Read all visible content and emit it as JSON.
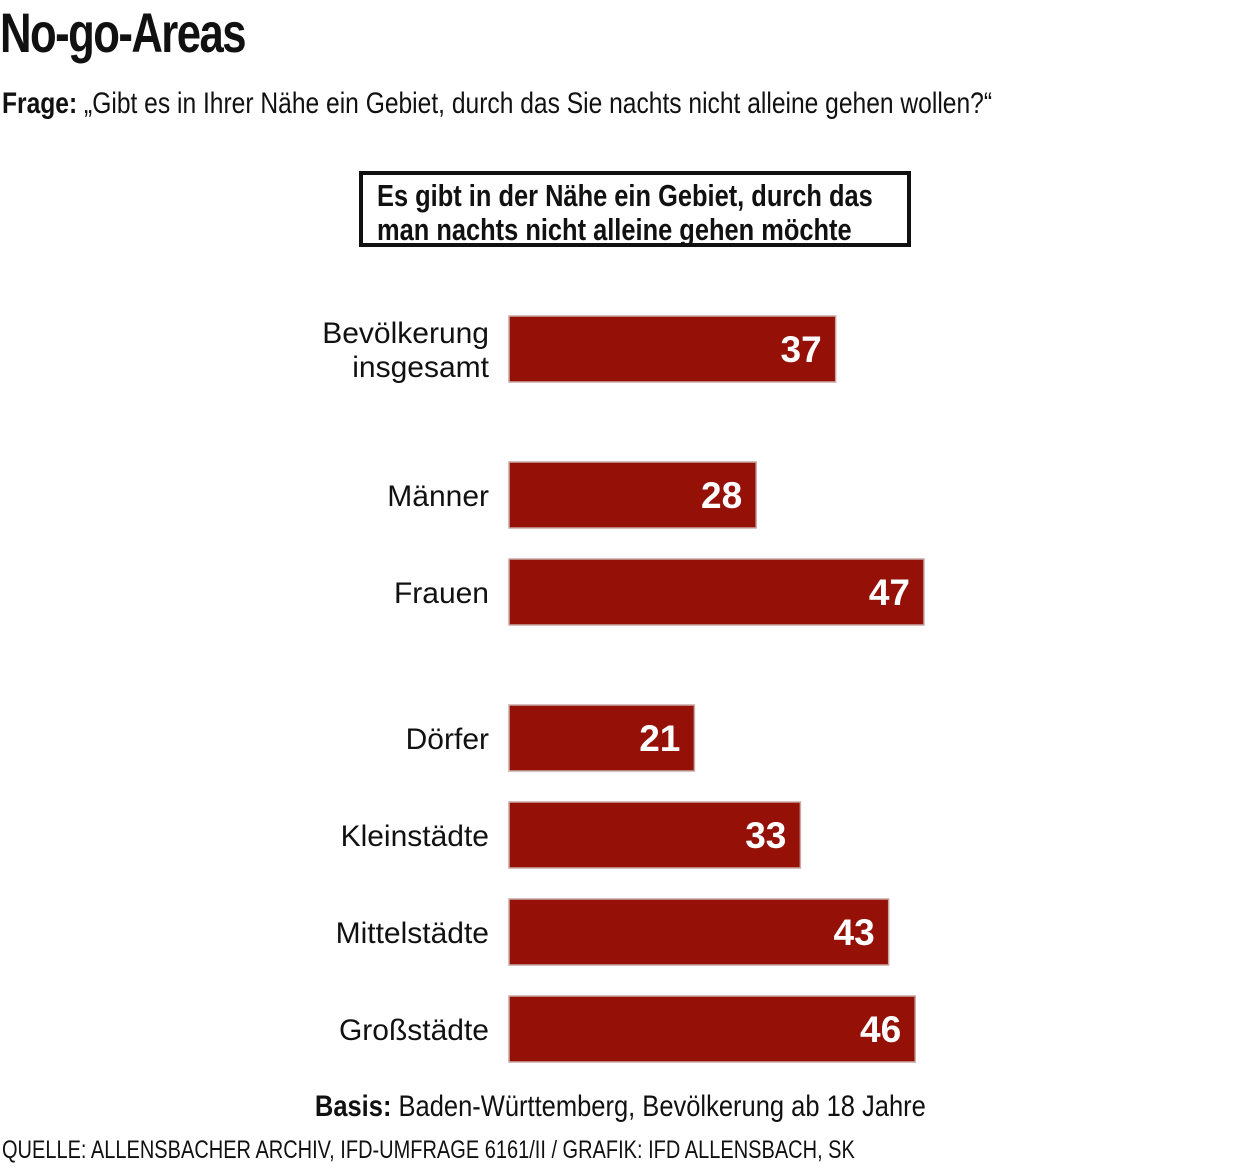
{
  "title": "No-go-Areas",
  "question": {
    "label": "Frage:",
    "text": "„Gibt es in Ihrer Nähe ein Gebiet, durch das Sie nachts nicht alleine gehen wollen?“"
  },
  "legend": {
    "line1": "Es gibt in der Nähe ein Gebiet, durch das",
    "line2": "man nachts nicht alleine gehen möchte"
  },
  "basis": {
    "label": "Basis:",
    "text": "Baden-Württemberg, Bevölkerung ab 18 Jahre"
  },
  "source": "QUELLE: ALLENSBACHER ARCHIV, IFD-UMFRAGE 6161/II  / GRAFIK: IFD ALLENSBACH, SK",
  "colors": {
    "bar": "#951108",
    "bar_edge": "#c9a9a6",
    "label_on_bar": "#ffffff"
  },
  "chart_data": {
    "type": "bar",
    "orientation": "horizontal",
    "title": "Es gibt in der Nähe ein Gebiet, durch das man nachts nicht alleine gehen möchte",
    "categories": [
      [
        "Bevölkerung",
        "insgesamt"
      ],
      [
        "Männer"
      ],
      [
        "Frauen"
      ],
      [
        "Dörfer"
      ],
      [
        "Kleinstädte"
      ],
      [
        "Mittelstädte"
      ],
      [
        "Großstädte"
      ]
    ],
    "groups": [
      [
        0
      ],
      [
        1,
        2
      ],
      [
        3,
        4,
        5,
        6
      ]
    ],
    "values": [
      37,
      28,
      47,
      21,
      33,
      43,
      46
    ],
    "xlim": [
      0,
      100
    ],
    "grid": false,
    "data_labels": true
  }
}
